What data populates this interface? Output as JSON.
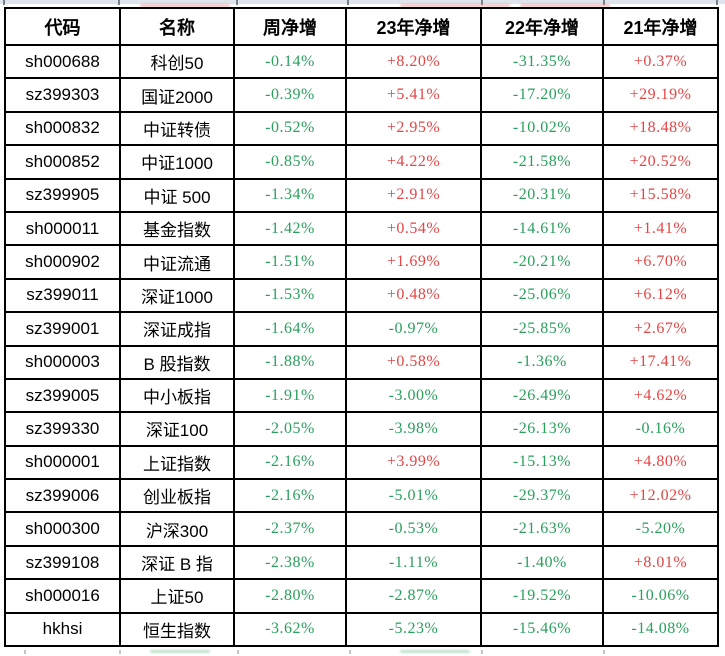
{
  "colors": {
    "positive": "#e54545",
    "negative": "#2aa05c",
    "border": "#000000",
    "header_text": "#000000",
    "top_sliver": "#dfe5ec"
  },
  "table": {
    "columns": [
      {
        "key": "code",
        "label": "代码",
        "numeric": false
      },
      {
        "key": "name",
        "label": "名称",
        "numeric": false
      },
      {
        "key": "week",
        "label": "周净增",
        "numeric": true
      },
      {
        "key": "y23",
        "label": "23年净增",
        "numeric": true
      },
      {
        "key": "y22",
        "label": "22年净增",
        "numeric": true
      },
      {
        "key": "y21",
        "label": "21年净增",
        "numeric": true
      }
    ],
    "rows": [
      {
        "code": "sh000688",
        "name": "科创50",
        "week": "-0.14%",
        "y23": "+8.20%",
        "y22": "-31.35%",
        "y21": "+0.37%"
      },
      {
        "code": "sz399303",
        "name": "国证2000",
        "week": "-0.39%",
        "y23": "+5.41%",
        "y22": "-17.20%",
        "y21": "+29.19%"
      },
      {
        "code": "sh000832",
        "name": "中证转债",
        "week": "-0.52%",
        "y23": "+2.95%",
        "y22": "-10.02%",
        "y21": "+18.48%"
      },
      {
        "code": "sh000852",
        "name": "中证1000",
        "week": "-0.85%",
        "y23": "+4.22%",
        "y22": "-21.58%",
        "y21": "+20.52%"
      },
      {
        "code": "sz399905",
        "name": "中证 500",
        "week": "-1.34%",
        "y23": "+2.91%",
        "y22": "-20.31%",
        "y21": "+15.58%"
      },
      {
        "code": "sh000011",
        "name": "基金指数",
        "week": "-1.42%",
        "y23": "+0.54%",
        "y22": "-14.61%",
        "y21": "+1.41%"
      },
      {
        "code": "sh000902",
        "name": "中证流通",
        "week": "-1.51%",
        "y23": "+1.69%",
        "y22": "-20.21%",
        "y21": "+6.70%"
      },
      {
        "code": "sz399011",
        "name": "深证1000",
        "week": "-1.53%",
        "y23": "+0.48%",
        "y22": "-25.06%",
        "y21": "+6.12%"
      },
      {
        "code": "sz399001",
        "name": "深证成指",
        "week": "-1.64%",
        "y23": "-0.97%",
        "y22": "-25.85%",
        "y21": "+2.67%"
      },
      {
        "code": "sh000003",
        "name": "B 股指数",
        "week": "-1.88%",
        "y23": "+0.58%",
        "y22": "-1.36%",
        "y21": "+17.41%"
      },
      {
        "code": "sz399005",
        "name": "中小板指",
        "week": "-1.91%",
        "y23": "-3.00%",
        "y22": "-26.49%",
        "y21": "+4.62%"
      },
      {
        "code": "sz399330",
        "name": "深证100",
        "week": "-2.05%",
        "y23": "-3.98%",
        "y22": "-26.13%",
        "y21": "-0.16%"
      },
      {
        "code": "sh000001",
        "name": "上证指数",
        "week": "-2.16%",
        "y23": "+3.99%",
        "y22": "-15.13%",
        "y21": "+4.80%"
      },
      {
        "code": "sz399006",
        "name": "创业板指",
        "week": "-2.16%",
        "y23": "-5.01%",
        "y22": "-29.37%",
        "y21": "+12.02%"
      },
      {
        "code": "sh000300",
        "name": "沪深300",
        "week": "-2.37%",
        "y23": "-0.53%",
        "y22": "-21.63%",
        "y21": "-5.20%"
      },
      {
        "code": "sz399108",
        "name": "深证 B 指",
        "week": "-2.38%",
        "y23": "-1.11%",
        "y22": "-1.40%",
        "y21": "+8.01%"
      },
      {
        "code": "sh000016",
        "name": "上证50",
        "week": "-2.80%",
        "y23": "-2.87%",
        "y22": "-19.52%",
        "y21": "-10.06%"
      },
      {
        "code": "hkhsi",
        "name": "恒生指数",
        "week": "-3.62%",
        "y23": "-5.23%",
        "y22": "-15.46%",
        "y21": "-14.08%"
      }
    ]
  }
}
